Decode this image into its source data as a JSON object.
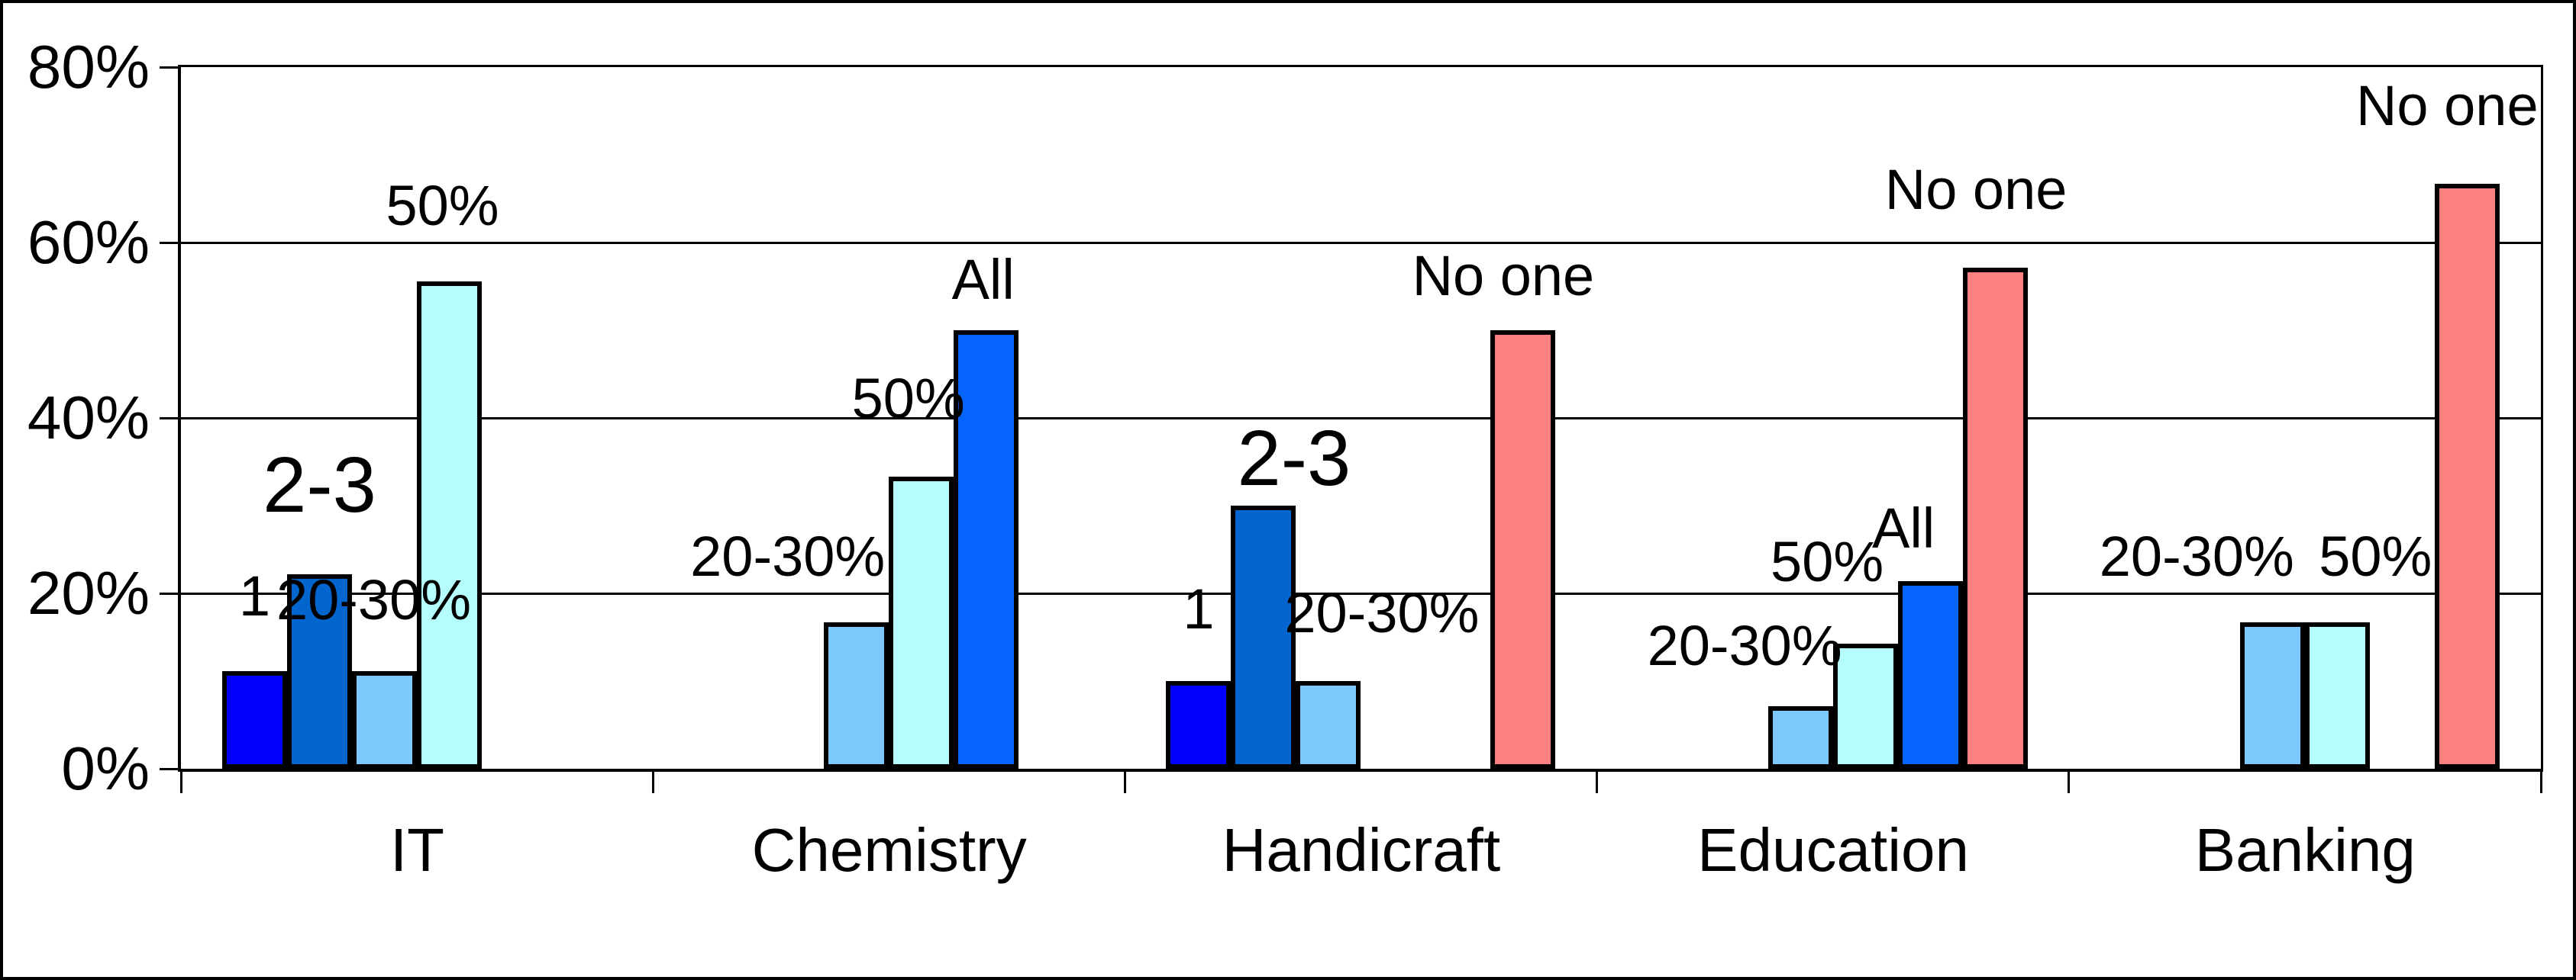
{
  "chart_data": {
    "type": "bar",
    "title": "",
    "categories": [
      "IT",
      "Chemistry",
      "Handicraft",
      "Education",
      "Banking"
    ],
    "ylim": [
      0,
      80
    ],
    "yticks": [
      {
        "v": 0,
        "label": "0%"
      },
      {
        "v": 20,
        "label": "20%"
      },
      {
        "v": 40,
        "label": "40%"
      },
      {
        "v": 60,
        "label": "60%"
      },
      {
        "v": 80,
        "label": "80%"
      }
    ],
    "grid": true,
    "legend": "none",
    "bar_outline": "#000000",
    "series": [
      {
        "name": "1",
        "color": "#0000FB",
        "values": [
          11.1,
          null,
          10,
          null,
          null
        ]
      },
      {
        "name": "2-3",
        "color": "#0366CE",
        "values": [
          22.2,
          null,
          30,
          null,
          null
        ]
      },
      {
        "name": "20-30%",
        "color": "#7DC8FC",
        "values": [
          11.1,
          16.7,
          10,
          7.1,
          16.7
        ]
      },
      {
        "name": "50%",
        "color": "#B5FCFC",
        "values": [
          55.6,
          33.3,
          null,
          14.3,
          16.7
        ]
      },
      {
        "name": "All",
        "color": "#0564FC",
        "values": [
          null,
          50,
          null,
          21.4,
          null
        ]
      },
      {
        "name": "No one",
        "color": "#FD8181",
        "values": [
          null,
          null,
          50,
          57.1,
          66.7
        ]
      }
    ],
    "groups": [
      {
        "category": "IT",
        "bars": [
          {
            "series": "1",
            "slot": 0,
            "value": 11.1,
            "label": "1",
            "dx": 0,
            "rise": 61,
            "large": false
          },
          {
            "series": "2-3",
            "slot": 1,
            "value": 22.2,
            "label": "2-3",
            "dx": 0,
            "rise": 66,
            "large": true
          },
          {
            "series": "20-30%",
            "slot": 2,
            "value": 11.1,
            "label": "20-30%",
            "dx": -14,
            "rise": 56,
            "large": false
          },
          {
            "series": "50%",
            "slot": 3,
            "value": 55.6,
            "label": "50%",
            "dx": -9,
            "rise": 62,
            "large": false
          }
        ]
      },
      {
        "category": "Chemistry",
        "bars": [
          {
            "series": "20-30%",
            "slot": 2,
            "value": 16.7,
            "label": "20-30%",
            "dx": -90,
            "rise": 49,
            "large": false
          },
          {
            "series": "50%",
            "slot": 3,
            "value": 33.3,
            "label": "50%",
            "dx": -17,
            "rise": 65,
            "large": false
          },
          {
            "series": "All",
            "slot": 4,
            "value": 50,
            "label": "All",
            "dx": -4,
            "rise": 29,
            "large": false
          }
        ]
      },
      {
        "category": "Handicraft",
        "bars": [
          {
            "series": "1",
            "slot": 0,
            "value": 10,
            "label": "1",
            "dx": 0,
            "rise": 57,
            "large": false
          },
          {
            "series": "2-3",
            "slot": 1,
            "value": 30,
            "label": "2-3",
            "dx": 40,
            "rise": 11,
            "large": true
          },
          {
            "series": "20-30%",
            "slot": 2,
            "value": 10,
            "label": "20-30%",
            "dx": 70,
            "rise": 52,
            "large": false
          },
          {
            "series": "No one",
            "slot": 5,
            "value": 50,
            "label": "No one",
            "dx": -26,
            "rise": 34,
            "large": false
          }
        ]
      },
      {
        "category": "Education",
        "bars": [
          {
            "series": "20-30%",
            "slot": 2,
            "value": 7.1,
            "label": "20-30%",
            "dx": -73,
            "rise": 42,
            "large": false
          },
          {
            "series": "50%",
            "slot": 3,
            "value": 14.3,
            "label": "50%",
            "dx": -50,
            "rise": 70,
            "large": false
          },
          {
            "series": "All",
            "slot": 4,
            "value": 21.4,
            "label": "All",
            "dx": -35,
            "rise": 32,
            "large": false
          },
          {
            "series": "No one",
            "slot": 5,
            "value": 57.1,
            "label": "No one",
            "dx": -25,
            "rise": 65,
            "large": false
          }
        ]
      },
      {
        "category": "Banking",
        "bars": [
          {
            "series": "20-30%",
            "slot": 2,
            "value": 16.7,
            "label": "20-30%",
            "dx": -99,
            "rise": 49,
            "large": false
          },
          {
            "series": "50%",
            "slot": 3,
            "value": 16.7,
            "label": "50%",
            "dx": 50,
            "rise": 49,
            "large": false
          },
          {
            "series": "No one",
            "slot": 5,
            "value": 66.7,
            "label": "No one",
            "dx": -26,
            "rise": 65,
            "large": false
          }
        ]
      }
    ]
  }
}
